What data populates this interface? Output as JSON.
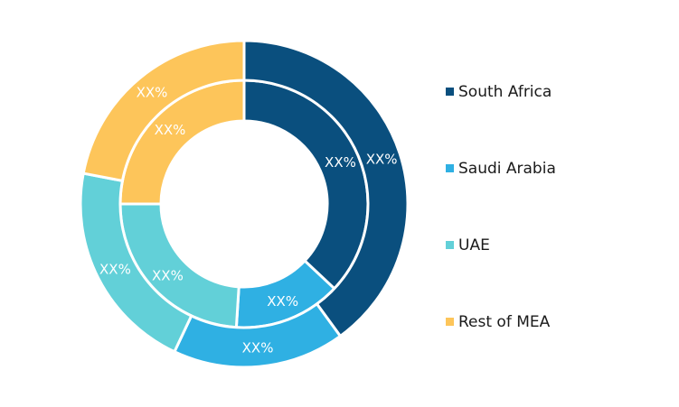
{
  "chart_data": {
    "type": "pie",
    "subtype": "nested-donut",
    "categories": [
      "South Africa",
      "Saudi Arabia",
      "UAE",
      "Rest of MEA"
    ],
    "colors": [
      "#0a4f7e",
      "#2fb0e3",
      "#62d0d8",
      "#fdc55a"
    ],
    "series": [
      {
        "ring": "inner",
        "values": [
          37,
          14,
          24,
          25
        ],
        "labels": [
          "XX%",
          "XX%",
          "XX%",
          "XX%"
        ]
      },
      {
        "ring": "outer",
        "values": [
          40,
          17,
          21,
          22
        ],
        "labels": [
          "XX%",
          "XX%",
          "XX%",
          "XX%"
        ]
      }
    ],
    "legend": {
      "position": "right",
      "entries": [
        "South Africa",
        "Saudi Arabia",
        "UAE",
        "Rest of MEA"
      ]
    }
  }
}
